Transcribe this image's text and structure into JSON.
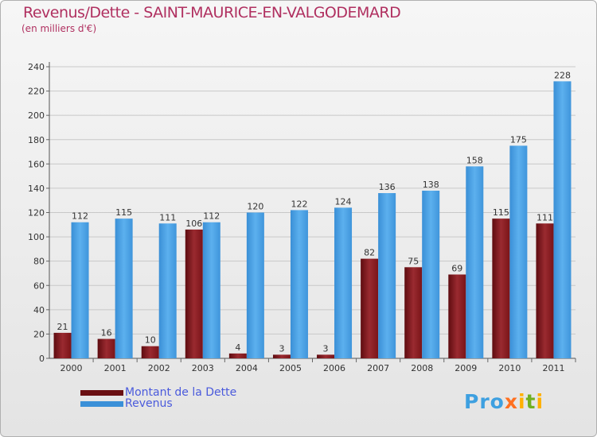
{
  "title": "Revenus/Dette - SAINT-MAURICE-EN-VALGODEMARD",
  "subtitle": "(en milliers d'€)",
  "logo": {
    "p1": "Pro",
    "p2": "x",
    "p3": "i",
    "p4": "t",
    "p5": "i"
  },
  "legend": [
    {
      "label": "Montant de la Dette",
      "color": "#6a0f12"
    },
    {
      "label": "Revenus",
      "color": "#3a90d8"
    }
  ],
  "chart_data": {
    "type": "bar",
    "title": "Revenus/Dette - SAINT-MAURICE-EN-VALGODEMARD",
    "subtitle": "(en milliers d'€)",
    "xlabel": "",
    "ylabel": "",
    "ylim": [
      0,
      240
    ],
    "yticks": [
      0,
      20,
      40,
      60,
      80,
      100,
      120,
      140,
      160,
      180,
      200,
      220,
      240
    ],
    "grid": true,
    "legend_position": "bottom-left",
    "categories": [
      "2000",
      "2001",
      "2002",
      "2003",
      "2004",
      "2005",
      "2006",
      "2007",
      "2008",
      "2009",
      "2010",
      "2011"
    ],
    "series": [
      {
        "name": "Montant de la Dette",
        "color": "#8b1a1f",
        "values": [
          21,
          16,
          10,
          106,
          4,
          3,
          3,
          82,
          75,
          69,
          115,
          111
        ]
      },
      {
        "name": "Revenus",
        "color": "#4fa6e6",
        "values": [
          112,
          115,
          111,
          112,
          120,
          122,
          124,
          136,
          138,
          158,
          175,
          228
        ]
      }
    ]
  }
}
